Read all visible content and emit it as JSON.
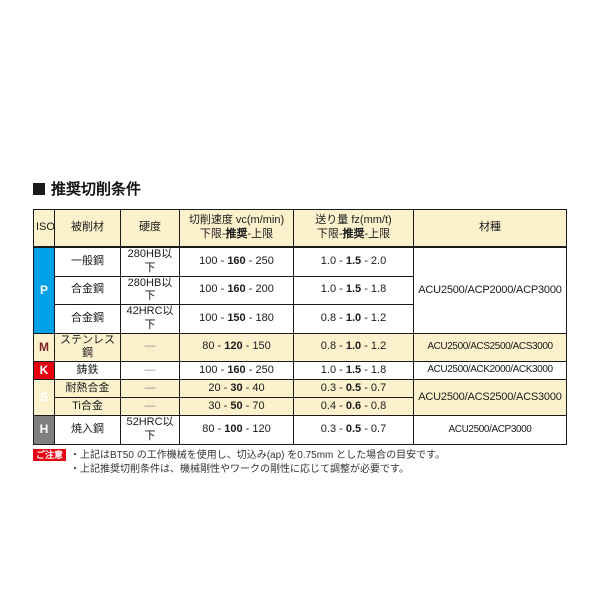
{
  "title": "推奨切削条件",
  "table": {
    "header": {
      "iso": "ISO",
      "material": "被削材",
      "hardness": "硬度",
      "speed_title": "切削速度 vc(m/min)",
      "feed_title": "送り量 fz(mm/t)",
      "range_low": "下限-",
      "range_rec": "推奨",
      "range_high": "-上限",
      "grade": "材種"
    },
    "iso_groups": [
      {
        "label": "P"
      },
      {
        "label": "M"
      },
      {
        "label": "K"
      },
      {
        "label": "S"
      },
      {
        "label": "H"
      }
    ],
    "rows": [
      {
        "material": "一般鋼",
        "hardness": "280HB以下",
        "speed": {
          "low": "100",
          "rec": "160",
          "high": "250"
        },
        "feed": {
          "low": "1.0",
          "rec": "1.5",
          "high": "2.0"
        }
      },
      {
        "material": "合金鋼",
        "hardness": "280HB以下",
        "speed": {
          "low": "100",
          "rec": "160",
          "high": "200"
        },
        "feed": {
          "low": "1.0",
          "rec": "1.5",
          "high": "1.8"
        }
      },
      {
        "material": "合金鋼",
        "hardness": "42HRC以下",
        "speed": {
          "low": "100",
          "rec": "150",
          "high": "180"
        },
        "feed": {
          "low": "0.8",
          "rec": "1.0",
          "high": "1.2"
        }
      },
      {
        "material": "ステンレス鋼",
        "hardness": "—",
        "speed": {
          "low": "80",
          "rec": "120",
          "high": "150"
        },
        "feed": {
          "low": "0.8",
          "rec": "1.0",
          "high": "1.2"
        }
      },
      {
        "material": "鋳鉄",
        "hardness": "—",
        "speed": {
          "low": "100",
          "rec": "160",
          "high": "250"
        },
        "feed": {
          "low": "1.0",
          "rec": "1.5",
          "high": "1.8"
        }
      },
      {
        "material": "耐熱合金",
        "hardness": "—",
        "speed": {
          "low": "20",
          "rec": "30",
          "high": "40"
        },
        "feed": {
          "low": "0.3",
          "rec": "0.5",
          "high": "0.7"
        }
      },
      {
        "material": "Ti合金",
        "hardness": "—",
        "speed": {
          "low": "30",
          "rec": "50",
          "high": "70"
        },
        "feed": {
          "low": "0.4",
          "rec": "0.6",
          "high": "0.8"
        }
      },
      {
        "material": "焼入鋼",
        "hardness": "52HRC以下",
        "speed": {
          "low": "80",
          "rec": "100",
          "high": "120"
        },
        "feed": {
          "low": "0.3",
          "rec": "0.5",
          "high": "0.7"
        }
      }
    ],
    "grades": [
      {
        "text": "ACU2500/ACP2000/ACP3000"
      },
      {
        "text": "ACU2500/ACS2500/ACS3000"
      },
      {
        "text": "ACU2500/ACK2000/ACK3000"
      },
      {
        "text": "ACU2500/ACS2500/ACS3000"
      },
      {
        "text": "ACU2500/ACP3000"
      }
    ]
  },
  "notes": {
    "badge": "ご注意",
    "lines": [
      "・上記はBT50 の工作機械を使用し、切込み(ap) を0.75mm とした場合の目安です。",
      "・上記推奨切削条件は、機械剛性やワークの剛性に応じて調整が必要です。"
    ]
  },
  "fmt": {
    "sep": " - "
  },
  "colors": {
    "header_bg": "#fbf1cd",
    "stripe_bg": "#fbf1cd",
    "border": "#1a1a1a",
    "p_blue": "#00a0e9",
    "m_yellow": "#ffe105",
    "m_text": "#7a2022",
    "k_red": "#e60012",
    "s_maroon": "#a5404f",
    "h_gray": "#7f7f7f",
    "note_badge": "#e60012"
  }
}
